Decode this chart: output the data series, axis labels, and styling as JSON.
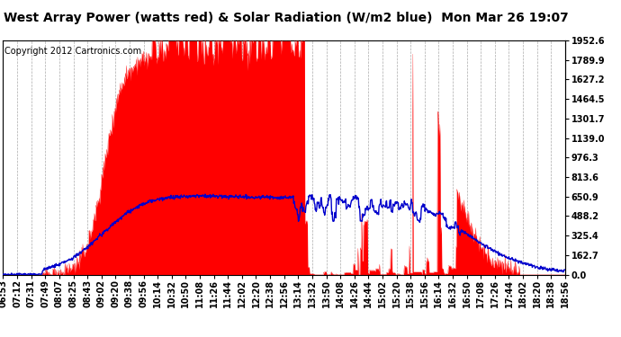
{
  "title": "West Array Power (watts red) & Solar Radiation (W/m2 blue)  Mon Mar 26 19:07",
  "copyright": "Copyright 2012 Cartronics.com",
  "bg_color": "#ffffff",
  "plot_bg_color": "#ffffff",
  "grid_color": "#888888",
  "red_color": "#ff0000",
  "blue_color": "#0000cc",
  "yticks": [
    0.0,
    162.7,
    325.4,
    488.2,
    650.9,
    813.6,
    976.3,
    1139.0,
    1301.7,
    1464.5,
    1627.2,
    1789.9,
    1952.6
  ],
  "ymax": 1952.6,
  "xtick_labels": [
    "06:53",
    "07:12",
    "07:31",
    "07:49",
    "08:07",
    "08:25",
    "08:43",
    "09:02",
    "09:20",
    "09:38",
    "09:56",
    "10:14",
    "10:32",
    "10:50",
    "11:08",
    "11:26",
    "11:44",
    "12:02",
    "12:20",
    "12:38",
    "12:56",
    "13:14",
    "13:32",
    "13:50",
    "14:08",
    "14:26",
    "14:44",
    "15:02",
    "15:20",
    "15:38",
    "15:56",
    "16:14",
    "16:32",
    "16:50",
    "17:08",
    "17:26",
    "17:44",
    "18:02",
    "18:20",
    "18:38",
    "18:56"
  ],
  "title_fontsize": 10,
  "copyright_fontsize": 7,
  "tick_fontsize": 7
}
